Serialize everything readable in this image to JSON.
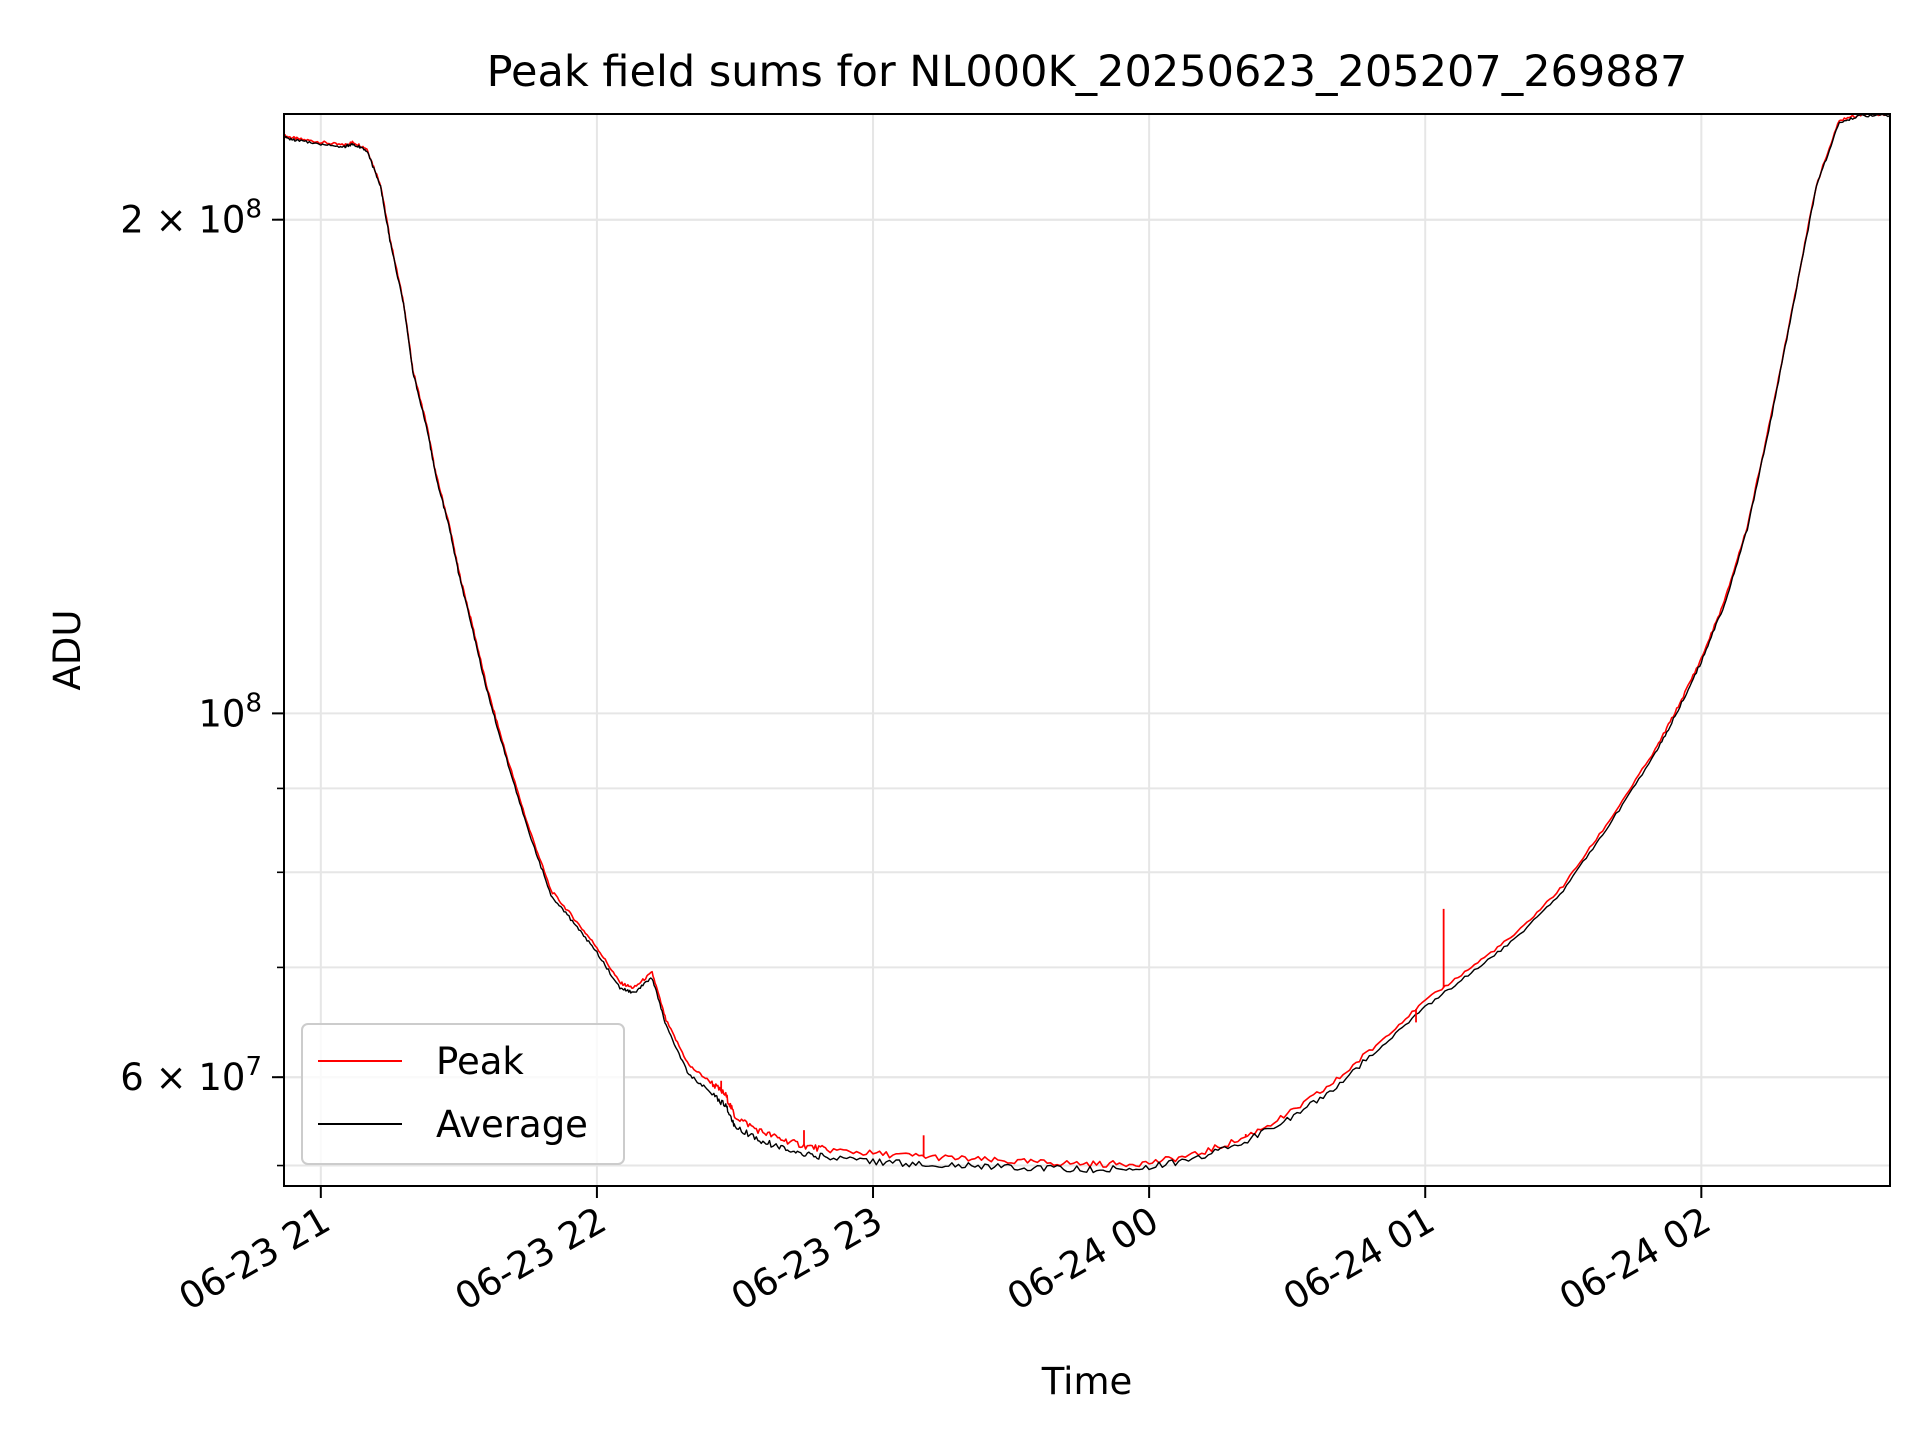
{
  "chart_data": {
    "type": "line",
    "title": "Peak field sums for NL000K_20250623_205207_269887",
    "xlabel": "Time",
    "ylabel": "ADU",
    "yscale": "log",
    "xlim": [
      "2025-06-23 20:52",
      "2025-06-24 02:41"
    ],
    "ylim": [
      51500000,
      232000000
    ],
    "grid": true,
    "legend_position": "lower-left",
    "x_ticks": [
      {
        "value": "2025-06-23 21:00",
        "label": "06-23 21"
      },
      {
        "value": "2025-06-23 22:00",
        "label": "06-23 22"
      },
      {
        "value": "2025-06-23 23:00",
        "label": "06-23 23"
      },
      {
        "value": "2025-06-24 00:00",
        "label": "06-24 00"
      },
      {
        "value": "2025-06-24 01:00",
        "label": "06-24 01"
      },
      {
        "value": "2025-06-24 02:00",
        "label": "06-24 02"
      }
    ],
    "y_major_ticks": [
      {
        "value": 60000000,
        "mantissa": "6",
        "exponent": "7"
      },
      {
        "value": 100000000,
        "mantissa": "",
        "exponent": "8"
      },
      {
        "value": 200000000,
        "mantissa": "2",
        "exponent": "8"
      }
    ],
    "y_minor_ticks": [
      53000000,
      60000000,
      70000000,
      80000000,
      90000000,
      200000000
    ],
    "series": [
      {
        "name": "Peak",
        "color": "#ff0000",
        "x": [
          "2025-06-23 20:52",
          "2025-06-23 20:55",
          "2025-06-23 21:00",
          "2025-06-23 21:05",
          "2025-06-23 21:07",
          "2025-06-23 21:10",
          "2025-06-23 21:13",
          "2025-06-23 21:15",
          "2025-06-23 21:18",
          "2025-06-23 21:20",
          "2025-06-23 21:23",
          "2025-06-23 21:25",
          "2025-06-23 21:28",
          "2025-06-23 21:30",
          "2025-06-23 21:33",
          "2025-06-23 21:36",
          "2025-06-23 21:40",
          "2025-06-23 21:45",
          "2025-06-23 21:50",
          "2025-06-23 21:55",
          "2025-06-23 22:00",
          "2025-06-23 22:05",
          "2025-06-23 22:08",
          "2025-06-23 22:12",
          "2025-06-23 22:15",
          "2025-06-23 22:20",
          "2025-06-23 22:25",
          "2025-06-23 22:28",
          "2025-06-23 22:30",
          "2025-06-23 22:35",
          "2025-06-23 22:40",
          "2025-06-23 22:45",
          "2025-06-23 22:50",
          "2025-06-23 23:00",
          "2025-06-23 23:10",
          "2025-06-23 23:20",
          "2025-06-23 23:30",
          "2025-06-23 23:40",
          "2025-06-23 23:50",
          "2025-06-24 00:00",
          "2025-06-24 00:10",
          "2025-06-24 00:20",
          "2025-06-24 00:30",
          "2025-06-24 00:40",
          "2025-06-24 00:50",
          "2025-06-24 01:00",
          "2025-06-24 01:10",
          "2025-06-24 01:20",
          "2025-06-24 01:30",
          "2025-06-24 01:40",
          "2025-06-24 01:50",
          "2025-06-24 01:55",
          "2025-06-24 02:00",
          "2025-06-24 02:05",
          "2025-06-24 02:10",
          "2025-06-24 02:15",
          "2025-06-24 02:20",
          "2025-06-24 02:25",
          "2025-06-24 02:30",
          "2025-06-24 02:35",
          "2025-06-24 02:41"
        ],
        "values": [
          225000000,
          224000000,
          223000000,
          222000000,
          223000000,
          221000000,
          210000000,
          195000000,
          178000000,
          162000000,
          150000000,
          140000000,
          130000000,
          122000000,
          113000000,
          104000000,
          95000000,
          85500000,
          78000000,
          75000000,
          72000000,
          68500000,
          68000000,
          69500000,
          65000000,
          61000000,
          59500000,
          58500000,
          56800000,
          55700000,
          55000000,
          54500000,
          54200000,
          53900000,
          53700000,
          53500000,
          53300000,
          53200000,
          53100000,
          53200000,
          53800000,
          55000000,
          56900000,
          59500000,
          63000000,
          66800000,
          70000000,
          73500000,
          78500000,
          86000000,
          95000000,
          101000000,
          108000000,
          117000000,
          130000000,
          151000000,
          178000000,
          210000000,
          230000000,
          232000000,
          232000000
        ]
      },
      {
        "name": "Average",
        "color": "#000000",
        "x": [
          "2025-06-23 20:52",
          "2025-06-23 20:55",
          "2025-06-23 21:00",
          "2025-06-23 21:05",
          "2025-06-23 21:07",
          "2025-06-23 21:10",
          "2025-06-23 21:13",
          "2025-06-23 21:15",
          "2025-06-23 21:18",
          "2025-06-23 21:20",
          "2025-06-23 21:23",
          "2025-06-23 21:25",
          "2025-06-23 21:28",
          "2025-06-23 21:30",
          "2025-06-23 21:33",
          "2025-06-23 21:36",
          "2025-06-23 21:40",
          "2025-06-23 21:45",
          "2025-06-23 21:50",
          "2025-06-23 21:55",
          "2025-06-23 22:00",
          "2025-06-23 22:05",
          "2025-06-23 22:08",
          "2025-06-23 22:12",
          "2025-06-23 22:15",
          "2025-06-23 22:20",
          "2025-06-23 22:25",
          "2025-06-23 22:28",
          "2025-06-23 22:30",
          "2025-06-23 22:35",
          "2025-06-23 22:40",
          "2025-06-23 22:45",
          "2025-06-23 22:50",
          "2025-06-23 23:00",
          "2025-06-23 23:10",
          "2025-06-23 23:20",
          "2025-06-23 23:30",
          "2025-06-23 23:40",
          "2025-06-23 23:50",
          "2025-06-24 00:00",
          "2025-06-24 00:10",
          "2025-06-24 00:20",
          "2025-06-24 00:30",
          "2025-06-24 00:40",
          "2025-06-24 00:50",
          "2025-06-24 01:00",
          "2025-06-24 01:10",
          "2025-06-24 01:20",
          "2025-06-24 01:30",
          "2025-06-24 01:40",
          "2025-06-24 01:50",
          "2025-06-24 01:55",
          "2025-06-24 02:00",
          "2025-06-24 02:05",
          "2025-06-24 02:10",
          "2025-06-24 02:15",
          "2025-06-24 02:20",
          "2025-06-24 02:25",
          "2025-06-24 02:30",
          "2025-06-24 02:35",
          "2025-06-24 02:41"
        ],
        "values": [
          224500000,
          223500000,
          222500000,
          221500000,
          222500000,
          220500000,
          209500000,
          194500000,
          177500000,
          161500000,
          149500000,
          139500000,
          129500000,
          121500000,
          112500000,
          103500000,
          94500000,
          85000000,
          77500000,
          74500000,
          71500000,
          68000000,
          67500000,
          69000000,
          64500000,
          60200000,
          58700000,
          57600000,
          56000000,
          55000000,
          54300000,
          53900000,
          53600000,
          53300000,
          53100000,
          53000000,
          52900000,
          52800000,
          52700000,
          52900000,
          53500000,
          54700000,
          56500000,
          59000000,
          62500000,
          66200000,
          69500000,
          73000000,
          78000000,
          85500000,
          94500000,
          100500000,
          107500000,
          116500000,
          129500000,
          150500000,
          177500000,
          209500000,
          229500000,
          231500000,
          231500000
        ]
      }
    ],
    "spikes": [
      {
        "series": "Peak",
        "x": "2025-06-23 22:27",
        "value": 59700000
      },
      {
        "series": "Peak",
        "x": "2025-06-23 22:45",
        "value": 55700000
      },
      {
        "series": "Peak",
        "x": "2025-06-23 23:11",
        "value": 55300000
      },
      {
        "series": "Peak",
        "x": "2025-06-24 00:21",
        "value": 55400000
      },
      {
        "series": "Peak",
        "x": "2025-06-24 00:58",
        "value": 64800000
      },
      {
        "series": "Peak",
        "x": "2025-06-24 01:04",
        "value": 76000000
      }
    ]
  }
}
